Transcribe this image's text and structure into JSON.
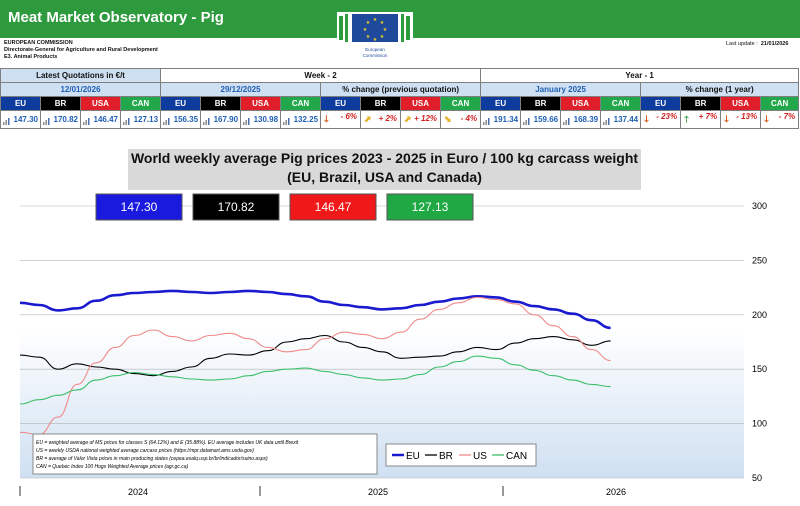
{
  "header": {
    "title": "Meat Market Observatory - Pig",
    "org_line1": "EUROPEAN COMMISSION",
    "org_line2": "Directorate-General for Agriculture and Rural Development",
    "org_line3": "E3. Animal Products",
    "logo_text1": "European",
    "logo_text2": "Commission",
    "last_update_label": "Last update :",
    "last_update_value": "21/01/2026"
  },
  "colors": {
    "banner": "#2e9a3e",
    "eu": "#0e3c9e",
    "br": "#000000",
    "usa": "#e01f2a",
    "can": "#22a84a"
  },
  "quotes": {
    "latest_label": "Latest Quotations in €/t",
    "latest_date": "12/01/2026",
    "week_label": "Week - 2",
    "week_date": "29/12/2025",
    "pct_prev_label": "% change (previous quotation)",
    "year_label": "Year - 1",
    "year_date": "January 2025",
    "pct_year_label": "% change (1 year)",
    "countries": [
      "EU",
      "BR",
      "USA",
      "CAN"
    ],
    "latest": [
      "147.30",
      "170.82",
      "146.47",
      "127.13"
    ],
    "week": [
      "156.35",
      "167.90",
      "130.98",
      "132.25"
    ],
    "pct_prev": [
      "- 6%",
      "+ 2%",
      "+ 12%",
      "- 4%"
    ],
    "year": [
      "191.34",
      "159.66",
      "168.39",
      "137.44"
    ],
    "pct_year": [
      "- 23%",
      "+ 7%",
      "- 13%",
      "- 7%"
    ]
  },
  "chart_data": {
    "type": "line",
    "title_line1": "World weekly average Pig prices 2023 - 2025  in Euro / 100 kg carcass weight",
    "title_line2": "(EU, Brazil, USA and Canada)",
    "ylim": [
      50,
      300
    ],
    "yticks": [
      50,
      100,
      150,
      200,
      250,
      300
    ],
    "xlim": [
      0,
      38
    ],
    "x_period_labels": [
      "2024",
      "2025",
      "2026"
    ],
    "value_boxes": [
      "147.30",
      "170.82",
      "146.47",
      "127.13"
    ],
    "legend": [
      "EU",
      "BR",
      "US",
      "CAN"
    ],
    "notes": [
      "EU    = weighted average of MS prices for classes S (64.12%) and E (35.88%). EU average includes UK data  until Brexit",
      "US    = weekly USDA national weighted average carcass prices (https://mpr.datamart.ams.usda.gov)",
      "BR    = average of Valor Vista prices in main producing states (cepea.esalq.usp.br/br/indicador/suino.aspx)",
      "CAN = Quebec Index 100 Hogs Weighted Average prices (agr.gc.ca)"
    ],
    "series": [
      {
        "name": "EU",
        "x": [
          0,
          1,
          2,
          3,
          4,
          5,
          6,
          7,
          8,
          9,
          10,
          11,
          12,
          13,
          14,
          15,
          16,
          17,
          18,
          19,
          20,
          21,
          22,
          23,
          24,
          25,
          26,
          27,
          28,
          29,
          30,
          31
        ],
        "y": [
          211,
          209,
          204,
          206,
          213,
          218,
          220,
          221,
          222,
          221,
          220,
          221,
          222,
          221,
          219,
          217,
          212,
          209,
          207,
          205,
          206,
          209,
          212,
          215,
          217,
          216,
          212,
          208,
          205,
          201,
          195,
          188
        ]
      },
      {
        "name": "BR",
        "x": [
          0,
          1,
          2,
          3,
          4,
          5,
          6,
          7,
          8,
          9,
          10,
          11,
          12,
          13,
          14,
          15,
          16,
          17,
          18,
          19,
          20,
          21,
          22,
          23,
          24,
          25,
          26,
          27,
          28,
          29,
          30,
          31
        ],
        "y": [
          163,
          161,
          150,
          155,
          152,
          150,
          146,
          144,
          148,
          152,
          160,
          164,
          163,
          167,
          175,
          178,
          181,
          175,
          170,
          166,
          160,
          161,
          162,
          166,
          170,
          168,
          174,
          178,
          180,
          177,
          172,
          176
        ]
      },
      {
        "name": "US",
        "x": [
          0,
          1,
          2,
          3,
          4,
          5,
          6,
          7,
          8,
          9,
          10,
          11,
          12,
          13,
          14,
          15,
          16,
          17,
          18,
          19,
          20,
          21,
          22,
          23,
          24,
          25,
          26,
          27,
          28,
          29,
          30,
          31
        ],
        "y": [
          92,
          90,
          106,
          136,
          156,
          170,
          181,
          186,
          180,
          176,
          181,
          183,
          178,
          170,
          166,
          168,
          178,
          184,
          182,
          178,
          184,
          196,
          205,
          211,
          216,
          214,
          210,
          200,
          190,
          180,
          168,
          158
        ]
      },
      {
        "name": "CAN",
        "x": [
          0,
          1,
          2,
          3,
          4,
          5,
          6,
          7,
          8,
          9,
          10,
          11,
          12,
          13,
          14,
          15,
          16,
          17,
          18,
          19,
          20,
          21,
          22,
          23,
          24,
          25,
          26,
          27,
          28,
          29,
          30,
          31
        ],
        "y": [
          118,
          122,
          126,
          131,
          140,
          144,
          147,
          145,
          143,
          141,
          140,
          141,
          144,
          148,
          150,
          151,
          148,
          145,
          142,
          140,
          141,
          145,
          152,
          157,
          162,
          160,
          154,
          149,
          144,
          140,
          136,
          134
        ]
      }
    ]
  }
}
